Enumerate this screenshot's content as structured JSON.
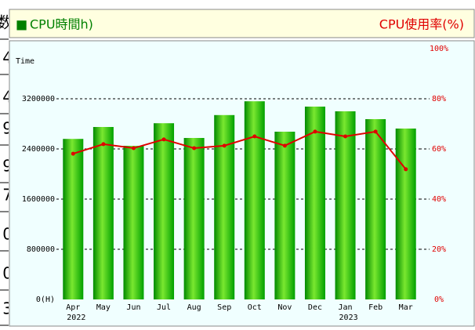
{
  "left_table": {
    "cells": [
      "数",
      "4",
      "4",
      "9",
      "9",
      "7",
      "0",
      "0",
      "3"
    ]
  },
  "chart_data": {
    "type": "bar",
    "axis_title": "Time",
    "categories": [
      "Apr",
      "May",
      "Jun",
      "Jul",
      "Aug",
      "Sep",
      "Oct",
      "Nov",
      "Dec",
      "Jan",
      "Feb",
      "Mar"
    ],
    "year_labels": [
      {
        "index": 0,
        "label": "2022"
      },
      {
        "index": 9,
        "label": "2023"
      }
    ],
    "series": [
      {
        "name": "CPU時間h)",
        "type": "bar",
        "color": "#00b000",
        "values": [
          2560000,
          2750000,
          2450000,
          2810000,
          2575000,
          2940000,
          3160000,
          2675000,
          3075000,
          3000000,
          2875000,
          2725000
        ]
      },
      {
        "name": "CPU使用率(%)",
        "type": "line",
        "axis": "y2",
        "color": "#e00000",
        "values": [
          58.1,
          61.9,
          60.3,
          63.8,
          60.3,
          61.3,
          65,
          61.3,
          66.9,
          65,
          66.9,
          51.9
        ]
      }
    ],
    "ylim": [
      0,
      4000000
    ],
    "yticks": [
      {
        "value": 0,
        "label": "0(H)"
      },
      800000,
      1600000,
      2400000,
      3200000
    ],
    "y2lim": [
      0,
      100
    ],
    "y2ticks": [
      {
        "value": 0,
        "label": "0%"
      },
      {
        "value": 20,
        "label": "20%"
      },
      {
        "value": 40,
        "label": "40%"
      },
      {
        "value": 60,
        "label": "60%"
      },
      {
        "value": 80,
        "label": "80%"
      },
      {
        "value": 100,
        "label": "100%"
      }
    ],
    "grid": true
  }
}
